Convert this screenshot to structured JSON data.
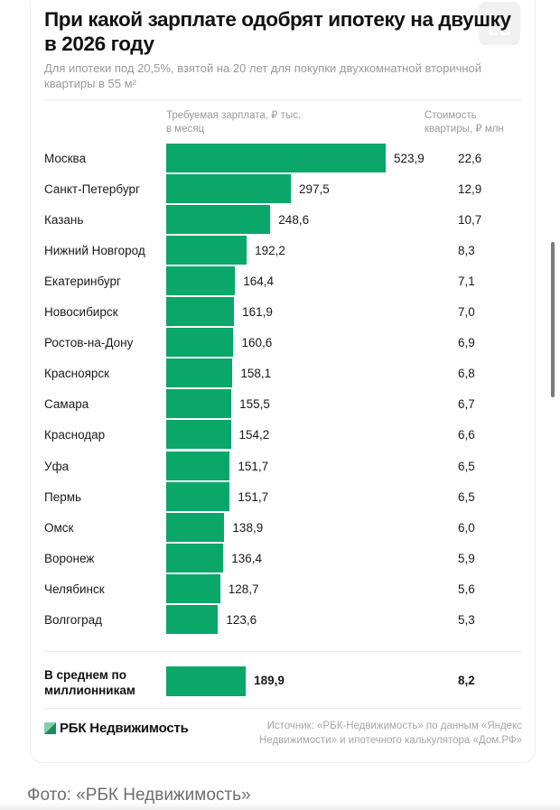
{
  "header": {
    "title": "При какой зарплате одобрят ипотеку на двушку в 2026 году",
    "subtitle": "Для ипотеки под 20,5%, взятой на 20 лет для покупки двухкомнатной вторичной квартиры в 55 м²",
    "expand_icon": "expand-icon"
  },
  "columns": {
    "salary_header": "Требуемая зарплата, ₽ тыс. в месяц",
    "cost_header": "Стоимость квартиры, ₽ млн"
  },
  "chart_data": {
    "type": "bar",
    "orientation": "horizontal",
    "title": "При какой зарплате одобрят ипотеку на двушку в 2026 году",
    "subtitle": "Для ипотеки под 20,5%, взятой на 20 лет для покупки двухкомнатной вторичной квартиры в 55 м²",
    "xlabel": "Требуемая зарплата, ₽ тыс. в месяц",
    "ylabel": "",
    "categories": [
      "Москва",
      "Санкт-Петербург",
      "Казань",
      "Нижний Новгород",
      "Екатеринбург",
      "Новосибирск",
      "Ростов-на-Дону",
      "Красноярск",
      "Самара",
      "Краснодар",
      "Уфа",
      "Пермь",
      "Омск",
      "Воронеж",
      "Челябинск",
      "Волгоград"
    ],
    "series": [
      {
        "name": "Требуемая зарплата, ₽ тыс. в месяц",
        "values": [
          523.9,
          297.5,
          248.6,
          192.2,
          164.4,
          161.9,
          160.6,
          158.1,
          155.5,
          154.2,
          151.7,
          151.7,
          138.9,
          136.4,
          128.7,
          123.6
        ],
        "labels": [
          "523,9",
          "297,5",
          "248,6",
          "192,2",
          "164,4",
          "161,9",
          "160,6",
          "158,1",
          "155,5",
          "154,2",
          "151,7",
          "151,7",
          "138,9",
          "136,4",
          "128,7",
          "123,6"
        ]
      },
      {
        "name": "Стоимость квартиры, ₽ млн",
        "values": [
          22.6,
          12.9,
          10.7,
          8.3,
          7.1,
          7.0,
          6.9,
          6.8,
          6.7,
          6.6,
          6.5,
          6.5,
          6.0,
          5.9,
          5.6,
          5.3
        ],
        "labels": [
          "22,6",
          "12,9",
          "10,7",
          "8,3",
          "7,1",
          "7,0",
          "6,9",
          "6,8",
          "6,7",
          "6,6",
          "6,5",
          "6,5",
          "6,0",
          "5,9",
          "5,6",
          "5,3"
        ]
      }
    ],
    "average": {
      "label": "В среднем по миллионникам",
      "salary": 189.9,
      "salary_label": "189,9",
      "cost": 8.2,
      "cost_label": "8,2"
    },
    "xlim": [
      0,
      523.9
    ],
    "grid": false,
    "legend": "none",
    "bar_color": "#0aa66a"
  },
  "footer": {
    "logo_text": "РБК Недвижимость",
    "source": "Источник: «РБК-Недвижимость» по данным «Яндекс Недвижимости» и ипотечного калькулятора «Дом.РФ»",
    "photo_credit": "Фото: «РБК Недвижимость»"
  },
  "colors": {
    "accent": "#0aa66a",
    "logo_dark": "#1f8a5a",
    "logo_light": "#7fd1a8"
  }
}
